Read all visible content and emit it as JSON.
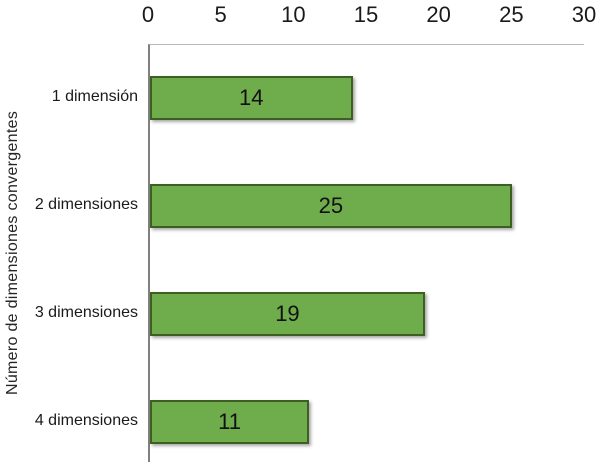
{
  "chart_data": {
    "type": "bar",
    "orientation": "horizontal",
    "title": "",
    "xlabel": "",
    "ylabel": "Número de dimensiones convergentes",
    "categories": [
      "1 dimensión",
      "2 dimensiones",
      "3 dimensiones",
      "4 dimensiones"
    ],
    "values": [
      14,
      25,
      19,
      11
    ],
    "xlim": [
      0,
      30
    ],
    "xticks": [
      0,
      5,
      10,
      15,
      20,
      25,
      30
    ],
    "axis_position": "top",
    "grid": false,
    "legend": false,
    "colors": {
      "bar_fill": "#6fac4c",
      "bar_border": "#3d5f21",
      "axis_line": "#808080",
      "top_line": "#b7b7b7",
      "text": "#1a1a1a"
    }
  }
}
